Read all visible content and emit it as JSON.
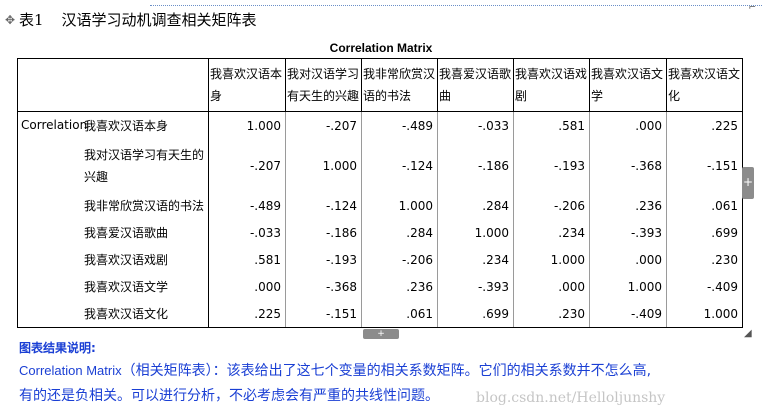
{
  "caption": {
    "table_label": "表1",
    "title": "汉语学习动机调查相关矩阵表"
  },
  "matrix": {
    "title": "Correlation Matrix",
    "row_group": "Correlation",
    "columns": [
      "我喜欢汉语本身",
      "我对汉语学习有天生的兴趣",
      "我非常欣赏汉语的书法",
      "我喜爱汉语歌曲",
      "我喜欢汉语戏剧",
      "我喜欢汉语文学",
      "我喜欢汉语文化"
    ],
    "rows": [
      {
        "label": "我喜欢汉语本身",
        "values": [
          "1.000",
          "-.207",
          "-.489",
          "-.033",
          ".581",
          ".000",
          ".225"
        ]
      },
      {
        "label": "我对汉语学习有天生的兴趣",
        "values": [
          "-.207",
          "1.000",
          "-.124",
          "-.186",
          "-.193",
          "-.368",
          "-.151"
        ]
      },
      {
        "label": "我非常欣赏汉语的书法",
        "values": [
          "-.489",
          "-.124",
          "1.000",
          ".284",
          "-.206",
          ".236",
          ".061"
        ]
      },
      {
        "label": "我喜爱汉语歌曲",
        "values": [
          "-.033",
          "-.186",
          ".284",
          "1.000",
          ".234",
          "-.393",
          ".699"
        ]
      },
      {
        "label": "我喜欢汉语戏剧",
        "values": [
          ".581",
          "-.193",
          "-.206",
          ".234",
          "1.000",
          ".000",
          ".230"
        ]
      },
      {
        "label": "我喜欢汉语文学",
        "values": [
          ".000",
          "-.368",
          ".236",
          "-.393",
          ".000",
          "1.000",
          "-.409"
        ]
      },
      {
        "label": "我喜欢汉语文化",
        "values": [
          ".225",
          "-.151",
          ".061",
          ".699",
          ".230",
          "-.409",
          "1.000"
        ]
      }
    ]
  },
  "description": {
    "title": "图表结果说明:",
    "line1_en": "Correlation Matrix",
    "line1_cn": "（相关矩阵表）：该表给出了这七个变量的相关系数矩阵。它们的相关系数并不怎么高,",
    "line2": "有的还是负相关。可以进行分析，不必考虑会有严重的共线性问题。"
  },
  "watermark": "blog.csdn.net/Helloljunshy",
  "colors": {
    "description_text": "#1a3fd4",
    "handle": "#8c8c8c"
  },
  "icons": {
    "move": "move-arrows-icon",
    "expand_right": "plus-icon",
    "expand_bottom": "plus-icon",
    "resize": "resize-corner-icon"
  }
}
